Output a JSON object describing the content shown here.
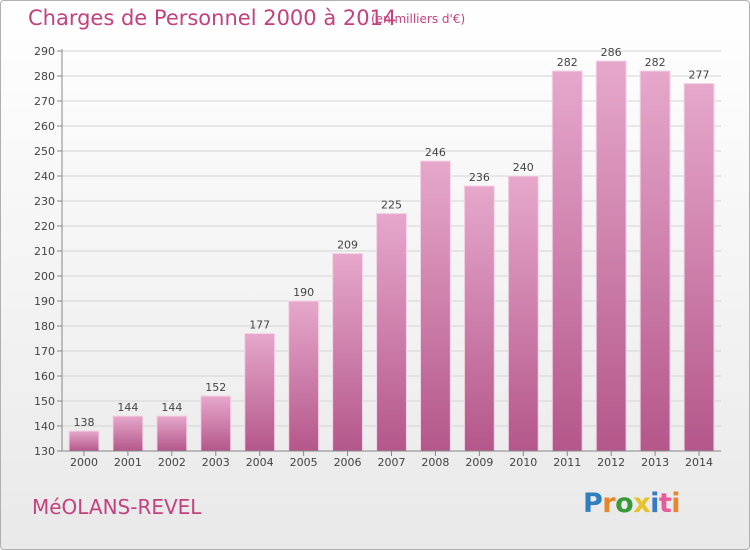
{
  "title": "Charges de Personnel 2000 à 2014",
  "subtitle": "(en milliers d'€)",
  "commune": "MéOLANS-REVEL",
  "logo": {
    "letters": [
      "P",
      "r",
      "o",
      "x",
      "i",
      "t",
      "i"
    ],
    "colors": [
      "#2f7fc0",
      "#e8862a",
      "#3a9a3a",
      "#e8c22a",
      "#3a78c8",
      "#e85a9a",
      "#e8862a"
    ]
  },
  "colors": {
    "accent": "#c3417f",
    "bar_top": "#e6a8cb",
    "bar_bottom": "#b4578a"
  },
  "chart_data": {
    "type": "bar",
    "categories": [
      "2000",
      "2001",
      "2002",
      "2003",
      "2004",
      "2005",
      "2006",
      "2007",
      "2008",
      "2009",
      "2010",
      "2011",
      "2012",
      "2013",
      "2014"
    ],
    "values": [
      138,
      144,
      144,
      152,
      177,
      190,
      209,
      225,
      246,
      236,
      240,
      282,
      286,
      282,
      277
    ],
    "ylim": [
      130,
      290
    ],
    "yticks": [
      130,
      140,
      150,
      160,
      170,
      180,
      190,
      200,
      210,
      220,
      230,
      240,
      250,
      260,
      270,
      280,
      290
    ],
    "grid": true
  }
}
